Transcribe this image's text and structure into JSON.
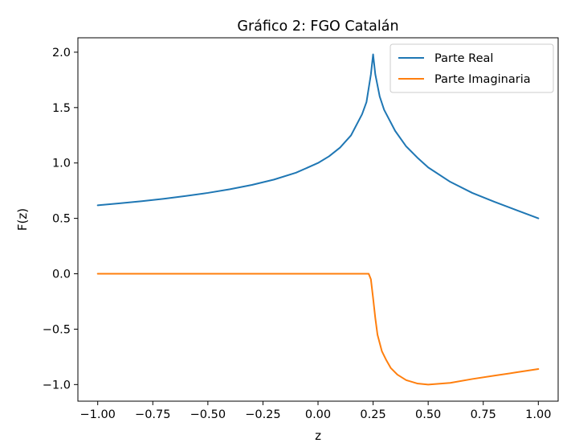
{
  "chart_data": {
    "type": "line",
    "title": "Gráfico 2: FGO Catalán",
    "xlabel": "z",
    "ylabel": "F(z)",
    "xlim": [
      -1.09,
      1.09
    ],
    "ylim": [
      -1.15,
      2.13
    ],
    "xticks": [
      -1.0,
      -0.75,
      -0.5,
      -0.25,
      0.0,
      0.25,
      0.5,
      0.75,
      1.0
    ],
    "xtick_labels": [
      "−1.00",
      "−0.75",
      "−0.50",
      "−0.25",
      "0.00",
      "0.25",
      "0.50",
      "0.75",
      "1.00"
    ],
    "yticks": [
      -1.0,
      -0.5,
      0.0,
      0.5,
      1.0,
      1.5,
      2.0
    ],
    "ytick_labels": [
      "−1.0",
      "−0.5",
      "0.0",
      "0.5",
      "1.0",
      "1.5",
      "2.0"
    ],
    "grid": false,
    "legend_position": "top-right",
    "series": [
      {
        "name": "Parte Real",
        "color": "#1f77b4",
        "points": [
          [
            -1.0,
            0.618
          ],
          [
            -0.9,
            0.636
          ],
          [
            -0.8,
            0.655
          ],
          [
            -0.7,
            0.677
          ],
          [
            -0.6,
            0.702
          ],
          [
            -0.5,
            0.73
          ],
          [
            -0.4,
            0.763
          ],
          [
            -0.3,
            0.802
          ],
          [
            -0.2,
            0.85
          ],
          [
            -0.1,
            0.912
          ],
          [
            0.0,
            1.0
          ],
          [
            0.05,
            1.06
          ],
          [
            0.1,
            1.139
          ],
          [
            0.15,
            1.25
          ],
          [
            0.2,
            1.44
          ],
          [
            0.22,
            1.55
          ],
          [
            0.24,
            1.8
          ],
          [
            0.25,
            1.98
          ],
          [
            0.26,
            1.8
          ],
          [
            0.28,
            1.6
          ],
          [
            0.3,
            1.48
          ],
          [
            0.35,
            1.29
          ],
          [
            0.4,
            1.15
          ],
          [
            0.45,
            1.05
          ],
          [
            0.5,
            0.96
          ],
          [
            0.6,
            0.83
          ],
          [
            0.7,
            0.73
          ],
          [
            0.8,
            0.65
          ],
          [
            0.9,
            0.575
          ],
          [
            1.0,
            0.5
          ]
        ]
      },
      {
        "name": "Parte Imaginaria",
        "color": "#ff7f0e",
        "points": [
          [
            -1.0,
            0.0
          ],
          [
            -0.5,
            0.0
          ],
          [
            0.0,
            0.0
          ],
          [
            0.23,
            0.0
          ],
          [
            0.24,
            -0.05
          ],
          [
            0.25,
            -0.22
          ],
          [
            0.26,
            -0.4
          ],
          [
            0.27,
            -0.55
          ],
          [
            0.29,
            -0.7
          ],
          [
            0.31,
            -0.78
          ],
          [
            0.33,
            -0.85
          ],
          [
            0.36,
            -0.91
          ],
          [
            0.4,
            -0.96
          ],
          [
            0.45,
            -0.99
          ],
          [
            0.5,
            -1.0
          ],
          [
            0.6,
            -0.985
          ],
          [
            0.7,
            -0.95
          ],
          [
            0.8,
            -0.92
          ],
          [
            0.9,
            -0.89
          ],
          [
            1.0,
            -0.86
          ]
        ]
      }
    ]
  }
}
